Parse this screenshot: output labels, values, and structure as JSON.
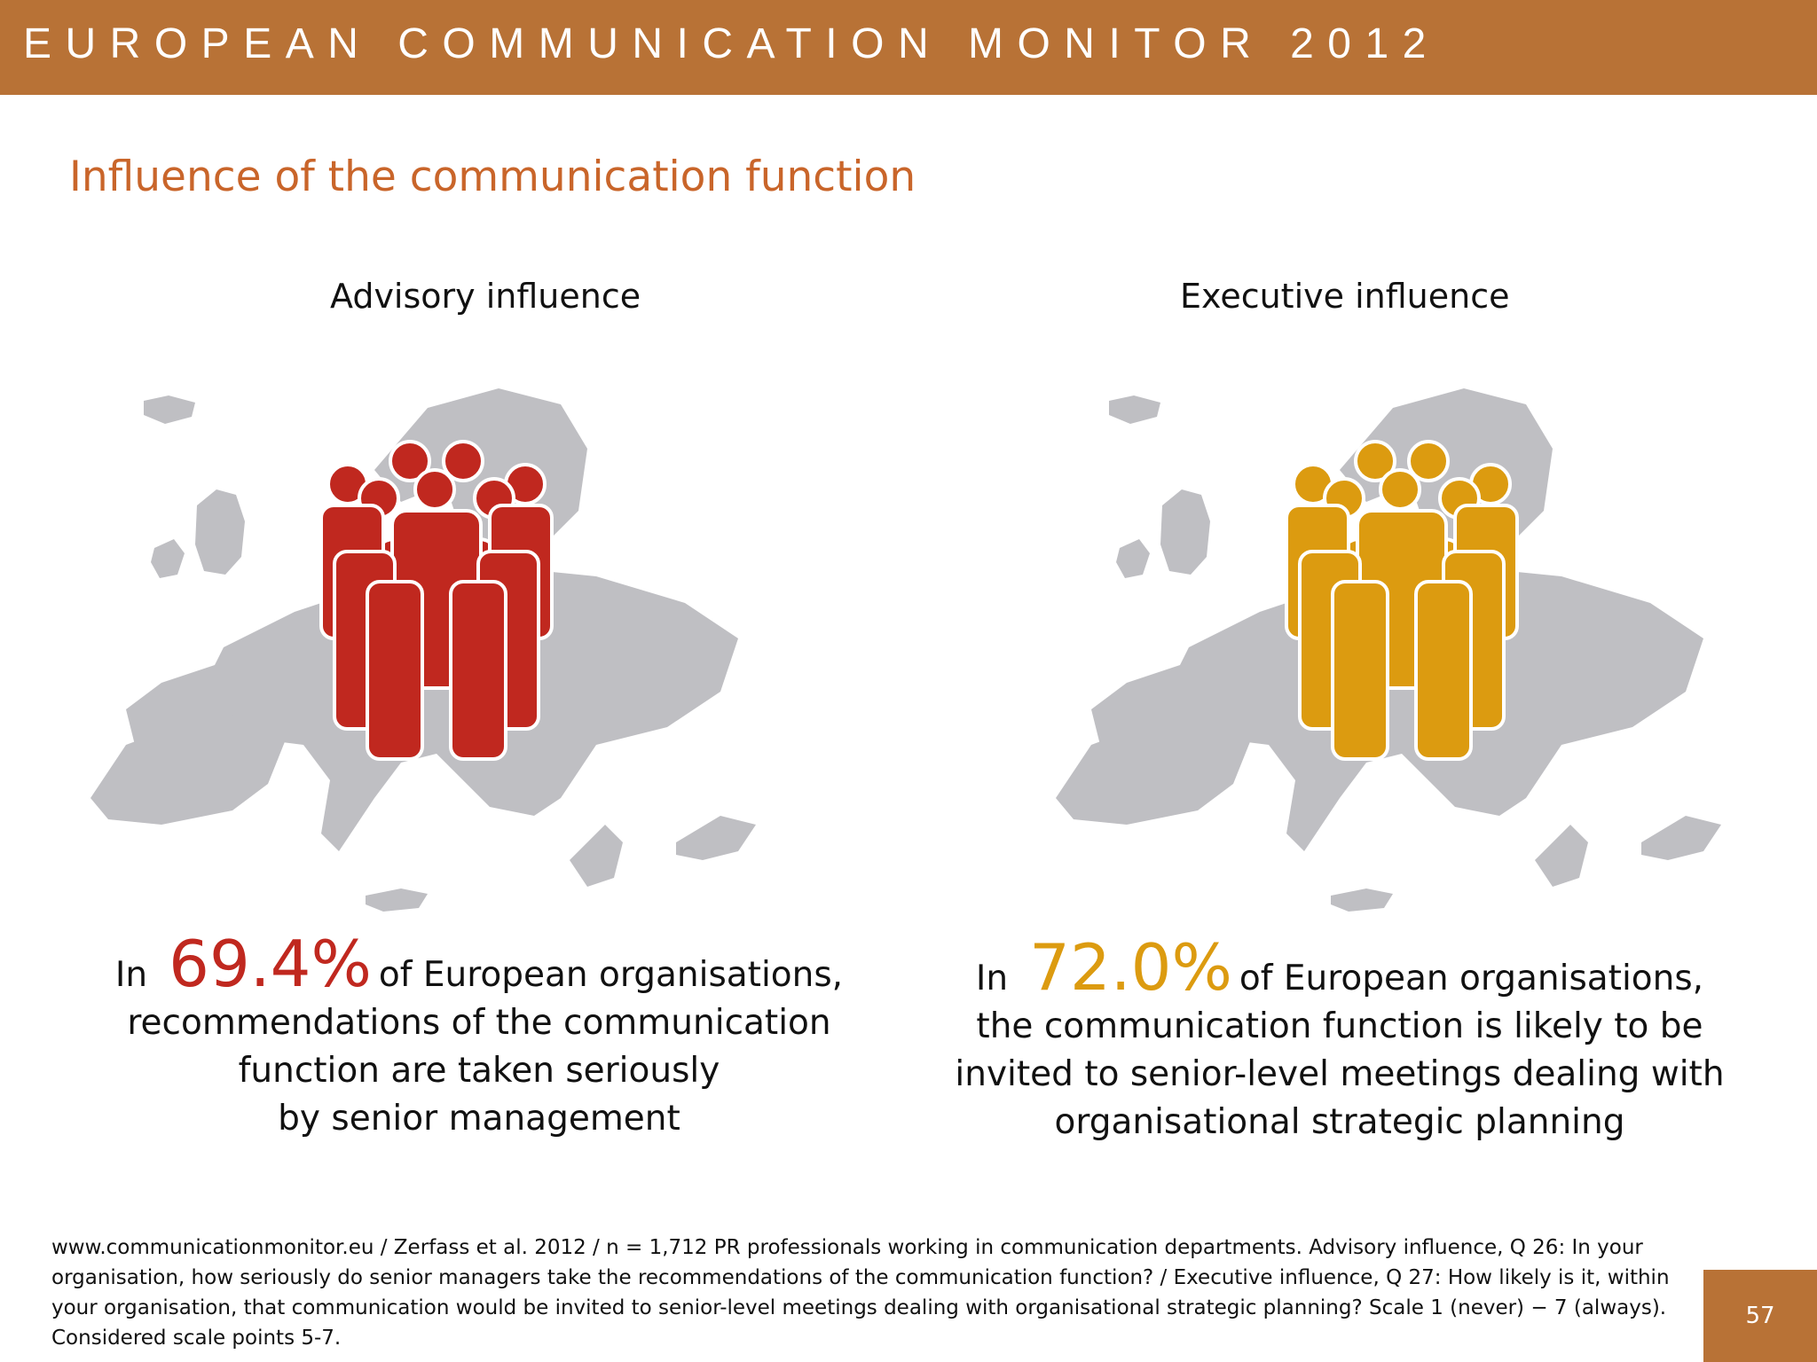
{
  "header": {
    "title": "EUROPEAN COMMUNICATION MONITOR 2012"
  },
  "slide": {
    "title": "Influence of the communication function"
  },
  "colors": {
    "brand": "#b87236",
    "title": "#c9652a",
    "advisory": "#c0281f",
    "executive": "#dc9b10",
    "map": "#bfbfc3"
  },
  "panels": [
    {
      "heading": "Advisory influence",
      "icon": "people-group-icon",
      "stat_prefix": "In",
      "stat_value": "69.4%",
      "stat_suffix": "of European organisations,",
      "lines": [
        "recommendations of the communication",
        "function are taken seriously",
        "by senior management"
      ]
    },
    {
      "heading": "Executive influence",
      "icon": "people-group-icon",
      "stat_prefix": "In",
      "stat_value": "72.0%",
      "stat_suffix": "of European organisations,",
      "lines": [
        "the communication function is likely to be",
        "invited to senior-level meetings dealing with",
        "organisational strategic planning"
      ]
    }
  ],
  "footnote": "www.communicationmonitor.eu / Zerfass et al. 2012 / n = 1,712 PR professionals working in communication departments. Advisory influence, Q 26: In your organisation, how seriously do senior managers take the recommendations of the communication function? /  Executive influence, Q 27: How likely is it, within your organisation, that communication would be invited to senior-level meetings dealing with organisational strategic planning? Scale 1 (never) − 7 (always). Considered scale points 5-7.",
  "page_number": "57"
}
